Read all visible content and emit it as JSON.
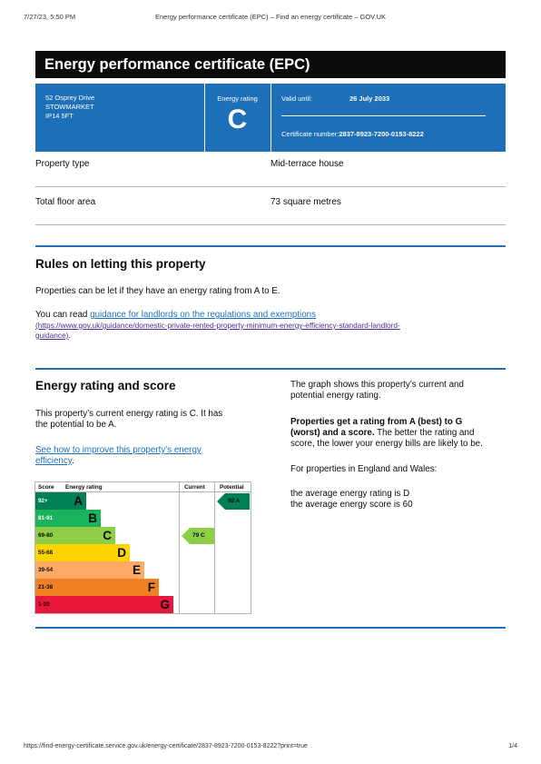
{
  "print_header": {
    "datetime": "7/27/23, 5:50 PM",
    "title": "Energy performance certificate (EPC) – Find an energy certificate – GOV.UK"
  },
  "print_footer": {
    "url": "https://find-energy-certificate.service.gov.uk/energy-certificate/2837-8923-7200-0153-8222?print=true",
    "page": "1/4"
  },
  "epc": {
    "title": "Energy performance certificate (EPC)",
    "address": [
      "52 Osprey Drive",
      "STOWMARKET",
      "IP14 5FT"
    ],
    "rating_label": "Energy rating",
    "rating": "C",
    "valid_until_label": "Valid until:",
    "valid_until": "26 July 2033",
    "cert_number_label": "Certificate number:",
    "cert_number": "2837-8923-7200-0153-8222"
  },
  "property": [
    {
      "label": "Property type",
      "value": "Mid-terrace house"
    },
    {
      "label": "Total floor area",
      "value": "73 square metres"
    }
  ],
  "letting": {
    "heading": "Rules on letting this property",
    "text": "Properties can be let if they have an energy rating from A to E.",
    "read_prefix": "You can read ",
    "link_text": "guidance for landlords on the regulations and exemptions",
    "link_url": "(https://www.gov.uk/guidance/domestic-private-rented-property-minimum-energy-efficiency-standard-landlord-guidance)",
    "link_url_line1": "(https://www.gov.uk/guidance/domestic-private-rented-property-minimum-energy-efficiency-standard-landlord-",
    "link_url_line2": "guidance)",
    "period": "."
  },
  "rating_section": {
    "heading": "Energy rating and score",
    "current_text_line1": "This property’s current energy rating is C. It has",
    "current_text_line2": "the potential to be A.",
    "improve_link_line1": "See how to improve this property’s energy",
    "improve_link_line2": "efficiency",
    "period": ".",
    "graph_text_line1": "The graph shows this property’s current and",
    "graph_text_line2": "potential energy rating.",
    "bold_line1": "Properties get a rating from A (best) to G",
    "bold_line2": "(worst) and a score.",
    "rest_line2": " The better the rating and",
    "rest_line3": "score, the lower your energy bills are likely to be.",
    "england_wales": "For properties in England and Wales:",
    "avg_rating": "the average energy rating is D",
    "avg_score": "the average energy score is 60"
  },
  "chart_data": {
    "type": "table",
    "headers": {
      "score": "Score",
      "rating": "Energy rating",
      "current": "Current",
      "potential": "Potential"
    },
    "bands": [
      {
        "range": "92+",
        "letter": "A",
        "color": "#008054",
        "text_color": "#ffffff"
      },
      {
        "range": "81-91",
        "letter": "B",
        "color": "#19b459",
        "text_color": "#ffffff"
      },
      {
        "range": "69-80",
        "letter": "C",
        "color": "#8dce46",
        "text_color": "#0b0c0c"
      },
      {
        "range": "55-68",
        "letter": "D",
        "color": "#ffd500",
        "text_color": "#0b0c0c"
      },
      {
        "range": "39-54",
        "letter": "E",
        "color": "#fcaa65",
        "text_color": "#0b0c0c"
      },
      {
        "range": "21-38",
        "letter": "F",
        "color": "#ef8023",
        "text_color": "#0b0c0c"
      },
      {
        "range": "1-20",
        "letter": "G",
        "color": "#e9153b",
        "text_color": "#0b0c0c"
      }
    ],
    "current": {
      "score": 79,
      "letter": "C",
      "label": "79  C",
      "color": "#8dce46"
    },
    "potential": {
      "score": 92,
      "letter": "A",
      "label": "92  A",
      "color": "#008054"
    }
  }
}
